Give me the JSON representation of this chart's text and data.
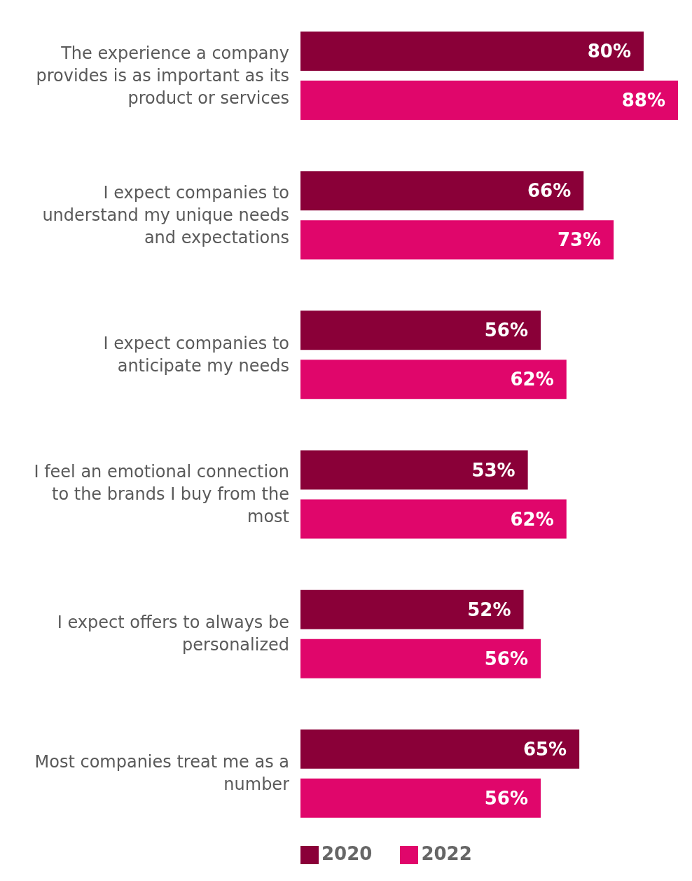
{
  "chart_data": {
    "type": "bar",
    "orientation": "horizontal",
    "categories": [
      "The experience a company provides is as important as its product or services",
      "I expect companies to understand my unique needs and expectations",
      "I expect companies to anticipate my needs",
      "I feel an emotional connection to the brands I buy from the most",
      "I expect offers to always be personalized",
      "Most companies treat me as a number"
    ],
    "series": [
      {
        "name": "2020",
        "color": "#8a0038",
        "values": [
          80,
          66,
          56,
          53,
          52,
          65
        ],
        "value_labels": [
          "80%",
          "66%",
          "56%",
          "53%",
          "52%",
          "65%"
        ]
      },
      {
        "name": "2022",
        "color": "#e0066b",
        "values": [
          88,
          73,
          62,
          62,
          56,
          56
        ],
        "value_labels": [
          "88%",
          "73%",
          "62%",
          "62%",
          "56%",
          "56%"
        ]
      }
    ],
    "xlim": [
      0,
      88
    ],
    "legend": "bottom"
  }
}
